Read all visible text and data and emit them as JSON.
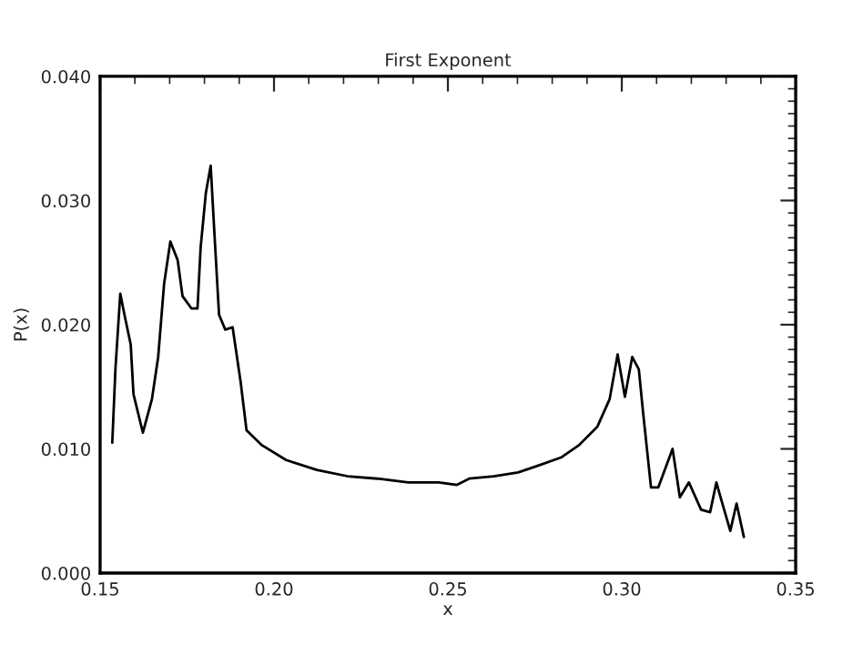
{
  "chart_data": {
    "type": "line",
    "title": "First Exponent",
    "xlabel": "x",
    "ylabel": "P(x)",
    "xlim": [
      0.15,
      0.35
    ],
    "xticks": [
      {
        "value": 0.15,
        "label": "0.15"
      },
      {
        "value": 0.2,
        "label": "0.20"
      },
      {
        "value": 0.25,
        "label": "0.25"
      },
      {
        "value": 0.3,
        "label": "0.30"
      },
      {
        "value": 0.35,
        "label": "0.35"
      }
    ],
    "ylim": [
      0,
      0.04
    ],
    "yticks": [
      {
        "value": 0,
        "label": "0.000"
      },
      {
        "value": 0.01,
        "label": "0.010"
      },
      {
        "value": 0.02,
        "label": "0.020"
      },
      {
        "value": 0.03,
        "label": "0.030"
      },
      {
        "value": 0.04,
        "label": "0.040"
      }
    ],
    "grid": false,
    "marker": "none",
    "line_style": "solid",
    "series": [
      {
        "color": "#000000",
        "x": [
          0.1535,
          0.1544,
          0.1558,
          0.157,
          0.1588,
          0.1596,
          0.1623,
          0.1649,
          0.1667,
          0.1684,
          0.1702,
          0.1723,
          0.1737,
          0.1763,
          0.178,
          0.1789,
          0.1804,
          0.1818,
          0.1828,
          0.1842,
          0.186,
          0.1881,
          0.1904,
          0.1921,
          0.1965,
          0.2035,
          0.2123,
          0.2211,
          0.2298,
          0.2386,
          0.2474,
          0.2526,
          0.2561,
          0.2632,
          0.2702,
          0.2754,
          0.2825,
          0.2877,
          0.293,
          0.2965,
          0.2988,
          0.3009,
          0.303,
          0.3049,
          0.3061,
          0.3084,
          0.3105,
          0.3146,
          0.3167,
          0.3193,
          0.3228,
          0.3254,
          0.3272,
          0.3286,
          0.3312,
          0.333,
          0.3351
        ],
        "values": [
          0.0105,
          0.0164,
          0.0225,
          0.0208,
          0.0184,
          0.0144,
          0.0113,
          0.014,
          0.0174,
          0.0233,
          0.0267,
          0.0252,
          0.0223,
          0.0213,
          0.0213,
          0.0262,
          0.0306,
          0.0328,
          0.0277,
          0.0208,
          0.0196,
          0.0198,
          0.0154,
          0.0115,
          0.0103,
          0.0091,
          0.0083,
          0.0078,
          0.0076,
          0.0073,
          0.0073,
          0.0071,
          0.0076,
          0.0078,
          0.0081,
          0.0086,
          0.0093,
          0.0103,
          0.0118,
          0.014,
          0.0176,
          0.0142,
          0.0174,
          0.0164,
          0.013,
          0.0069,
          0.0069,
          0.01,
          0.0061,
          0.0073,
          0.0051,
          0.0049,
          0.0073,
          0.0059,
          0.0034,
          0.0056,
          0.0029
        ]
      }
    ]
  }
}
